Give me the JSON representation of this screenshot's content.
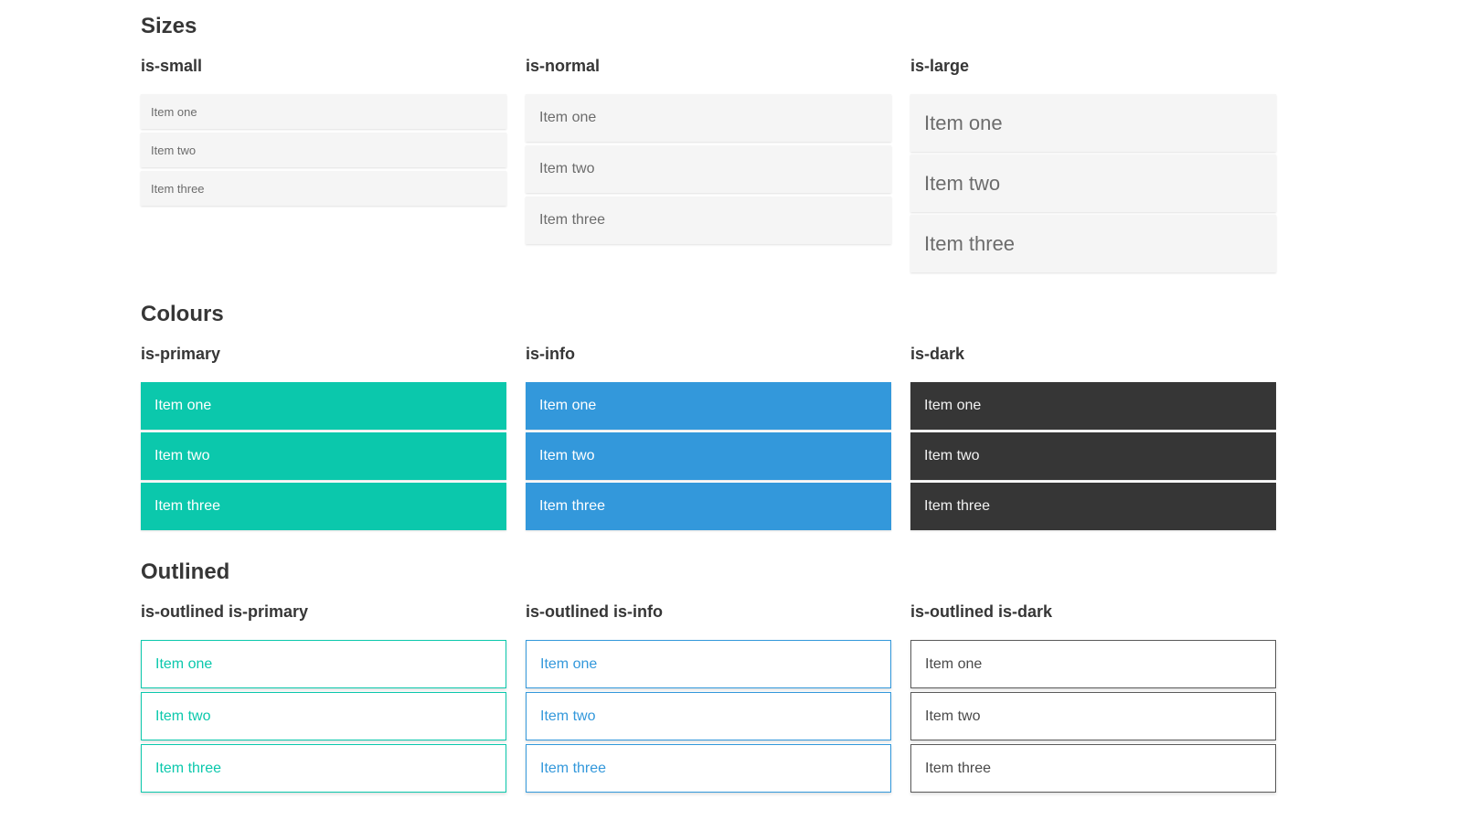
{
  "colors": {
    "primary": "#0bc8ac",
    "info": "#3398db",
    "dark": "#363636",
    "item_bg": "#f5f5f5",
    "heading_text": "#363636",
    "item_text": "#6c6c6c"
  },
  "sections": [
    {
      "title": "Sizes",
      "groups": [
        {
          "heading": "is-small",
          "variant": "small",
          "items": [
            "Item one",
            "Item two",
            "Item three"
          ]
        },
        {
          "heading": "is-normal",
          "variant": "normal",
          "items": [
            "Item one",
            "Item two",
            "Item three"
          ]
        },
        {
          "heading": "is-large",
          "variant": "large",
          "items": [
            "Item one",
            "Item two",
            "Item three"
          ]
        }
      ]
    },
    {
      "title": "Colours",
      "groups": [
        {
          "heading": "is-primary",
          "variant": "primary",
          "items": [
            "Item one",
            "Item two",
            "Item three"
          ]
        },
        {
          "heading": "is-info",
          "variant": "info",
          "items": [
            "Item one",
            "Item two",
            "Item three"
          ]
        },
        {
          "heading": "is-dark",
          "variant": "dark",
          "items": [
            "Item one",
            "Item two",
            "Item three"
          ]
        }
      ]
    },
    {
      "title": "Outlined",
      "groups": [
        {
          "heading": "is-outlined is-primary",
          "variant": "outlined-primary",
          "items": [
            "Item one",
            "Item two",
            "Item three"
          ]
        },
        {
          "heading": "is-outlined is-info",
          "variant": "outlined-info",
          "items": [
            "Item one",
            "Item two",
            "Item three"
          ]
        },
        {
          "heading": "is-outlined is-dark",
          "variant": "outlined-dark",
          "items": [
            "Item one",
            "Item two",
            "Item three"
          ]
        }
      ]
    }
  ]
}
